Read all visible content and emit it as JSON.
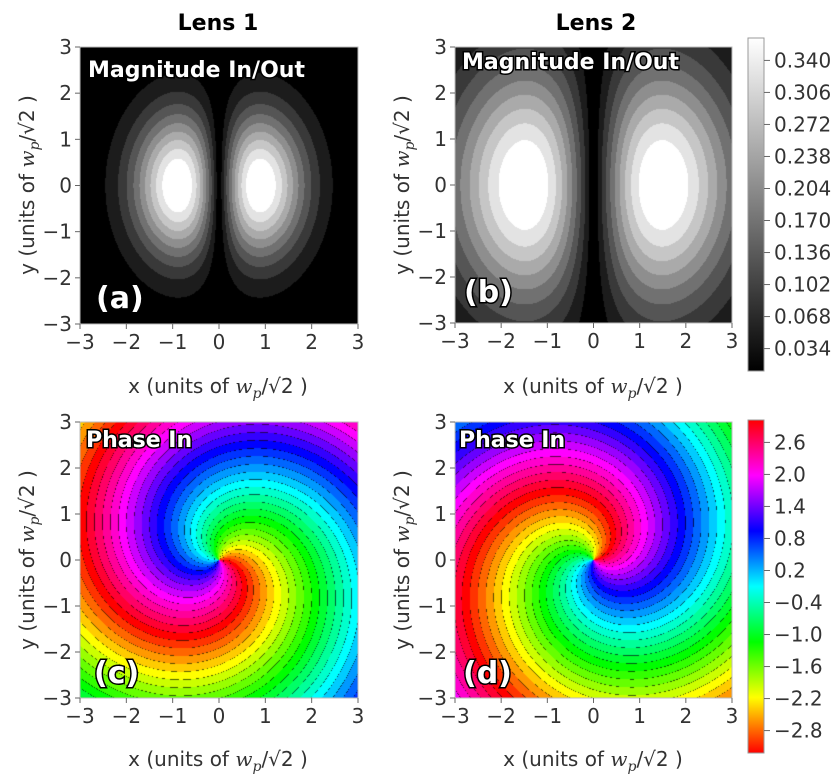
{
  "chart_data": [
    {
      "type": "heatmap",
      "id": "a",
      "column_title": "Lens 1",
      "panel_label": "(a)",
      "inset_label": "Magnitude In/Out",
      "xlabel": "x (units of",
      "ylabel": "y (units of",
      "unit_symbol": "w",
      "unit_subscript": "p",
      "unit_divisor": "/√2 )",
      "xlim": [
        -3,
        3
      ],
      "ylim": [
        -3,
        3
      ],
      "x_ticks": [
        "−3",
        "−2",
        "−1",
        "0",
        "1",
        "2",
        "3"
      ],
      "y_ticks": [
        "3",
        "2",
        "1",
        "0",
        "−1",
        "−2",
        "−3"
      ],
      "field": {
        "kind": "magnitude",
        "peak_x": 1.25,
        "peak_value": 0.34,
        "null_at": [
          0,
          0
        ]
      }
    },
    {
      "type": "heatmap",
      "id": "b",
      "column_title": "Lens 2",
      "panel_label": "(b)",
      "inset_label": "Magnitude In/Out",
      "xlabel": "x (units of",
      "ylabel": "y (units of",
      "unit_symbol": "w",
      "unit_subscript": "p",
      "unit_divisor": "/√2 )",
      "xlim": [
        -3,
        3
      ],
      "ylim": [
        -3,
        3
      ],
      "x_ticks": [
        "−3",
        "−2",
        "−1",
        "0",
        "1",
        "2",
        "3"
      ],
      "y_ticks": [
        "3",
        "2",
        "1",
        "0",
        "−1",
        "−2",
        "−3"
      ],
      "field": {
        "kind": "magnitude",
        "peak_x": 2.1,
        "peak_value": 0.34,
        "null_at": [
          0,
          0
        ]
      }
    },
    {
      "type": "heatmap",
      "id": "c",
      "panel_label": "(c)",
      "inset_label": "Phase In",
      "xlabel": "x (units of",
      "ylabel": "y (units of",
      "unit_symbol": "w",
      "unit_subscript": "p",
      "unit_divisor": "/√2 )",
      "xlim": [
        -3,
        3
      ],
      "ylim": [
        -3,
        3
      ],
      "x_ticks": [
        "−3",
        "−2",
        "−1",
        "0",
        "1",
        "2",
        "3"
      ],
      "y_ticks": [
        "3",
        "2",
        "1",
        "0",
        "−1",
        "−2",
        "−3"
      ],
      "field": {
        "kind": "phase",
        "twist": 1
      }
    },
    {
      "type": "heatmap",
      "id": "d",
      "panel_label": "(d)",
      "inset_label": "Phase In",
      "xlabel": "x (units of",
      "ylabel": "y (units of",
      "unit_symbol": "w",
      "unit_subscript": "p",
      "unit_divisor": "/√2 )",
      "xlim": [
        -3,
        3
      ],
      "ylim": [
        -3,
        3
      ],
      "x_ticks": [
        "−3",
        "−2",
        "−1",
        "0",
        "1",
        "2",
        "3"
      ],
      "y_ticks": [
        "3",
        "2",
        "1",
        "0",
        "−1",
        "−2",
        "−3"
      ],
      "field": {
        "kind": "phase",
        "twist": -1
      }
    }
  ],
  "colorbars": {
    "magnitude": {
      "labels": [
        "0.340",
        "0.306",
        "0.272",
        "0.238",
        "0.204",
        "0.170",
        "0.136",
        "0.102",
        "0.068",
        "0.034"
      ],
      "range": [
        0,
        0.357
      ],
      "colors": [
        "#000000",
        "#ffffff"
      ]
    },
    "phase": {
      "labels": [
        "2.6",
        "2.0",
        "1.4",
        "0.8",
        "0.2",
        "−0.4",
        "−1.0",
        "−1.6",
        "−2.2",
        "−2.8"
      ],
      "range": [
        -3.14,
        3.14
      ],
      "colors": [
        "#ff0000",
        "#ffff00",
        "#00ff00",
        "#00ffff",
        "#0000ff",
        "#ff00ff",
        "#ff0000"
      ]
    }
  }
}
